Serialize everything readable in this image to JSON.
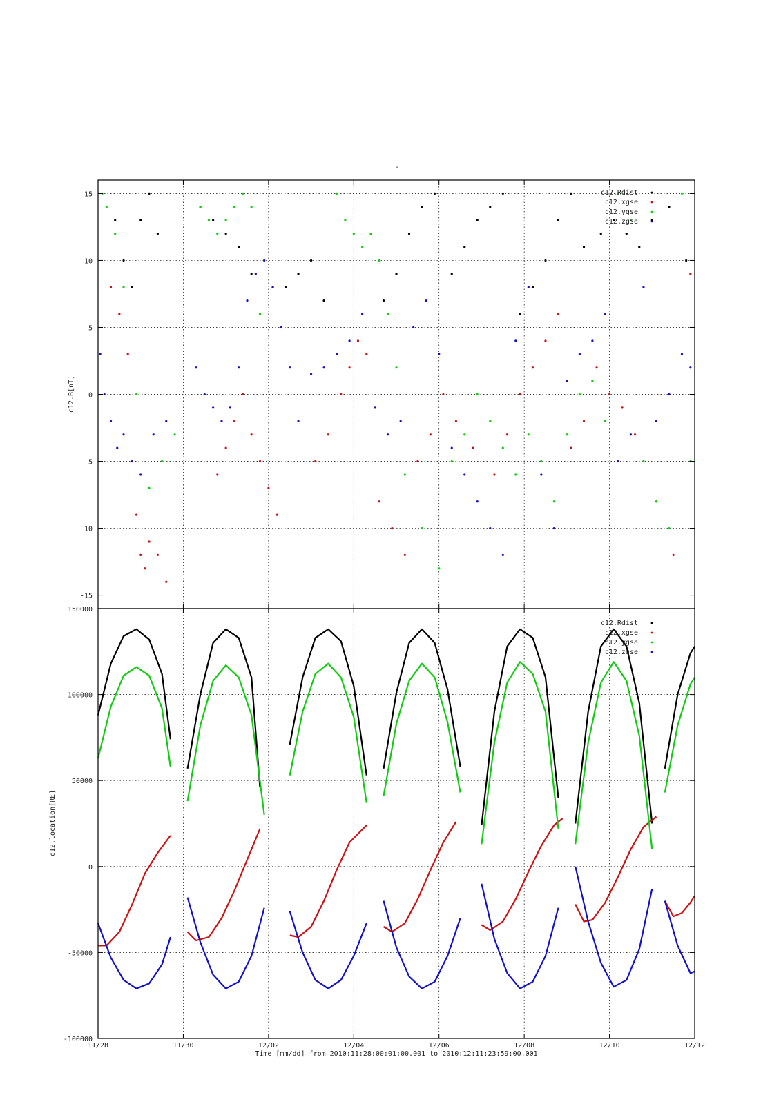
{
  "figure": {
    "top_title": "-",
    "xlabel": "Time [mm/dd]  from 2010:11:28:00:01:00.001  to  2010:12:11:23:59:00.001"
  },
  "colors": {
    "Rdist": "#000000",
    "xgse": "#cc1111",
    "ygse": "#11cc11",
    "zgse": "#1111cc"
  },
  "chart_data": [
    {
      "type": "scatter",
      "title": "",
      "ylabel": "c12.B[nT]",
      "x_unit": "days since 11/28",
      "xlim": [
        0,
        14
      ],
      "ylim": [
        -16,
        16
      ],
      "x_tick_labels": [
        "11/28",
        "11/30",
        "12/02",
        "12/04",
        "12/06",
        "12/08",
        "12/10",
        "12/12"
      ],
      "y_ticks": [
        -15,
        -10,
        -5,
        0,
        5,
        10,
        15
      ],
      "grid": true,
      "legend_position": "top-right",
      "series": [
        {
          "name": "c12.Rdist",
          "color": "#000000",
          "x": [
            0.4,
            0.6,
            0.8,
            1.0,
            1.2,
            1.4,
            2.4,
            2.7,
            3.0,
            3.3,
            3.6,
            4.1,
            4.4,
            4.7,
            5.0,
            5.3,
            6.7,
            7.0,
            7.3,
            7.6,
            7.9,
            8.3,
            8.6,
            8.9,
            9.2,
            9.5,
            9.9,
            10.2,
            10.5,
            10.8,
            11.1,
            11.4,
            11.8,
            12.1,
            12.4,
            12.7,
            13.0,
            13.4,
            13.8
          ],
          "y": [
            13,
            10,
            8,
            13,
            15,
            12,
            14,
            13,
            12,
            11,
            9,
            8,
            8,
            9,
            10,
            7,
            7,
            9,
            12,
            14,
            15,
            9,
            11,
            13,
            14,
            15,
            6,
            8,
            10,
            13,
            15,
            11,
            12,
            13,
            12,
            11,
            13,
            14,
            10
          ]
        },
        {
          "name": "c12.xgse",
          "color": "#cc1111",
          "x": [
            0.3,
            0.5,
            0.7,
            0.9,
            1.0,
            1.1,
            1.2,
            1.4,
            1.6,
            2.8,
            3.0,
            3.2,
            3.4,
            3.6,
            3.8,
            4.0,
            4.2,
            5.1,
            5.4,
            5.7,
            5.9,
            6.1,
            6.3,
            6.6,
            6.9,
            7.2,
            7.5,
            7.8,
            8.1,
            8.4,
            8.8,
            9.3,
            9.6,
            9.9,
            10.2,
            10.5,
            10.8,
            11.1,
            11.4,
            11.7,
            12.0,
            12.3,
            12.6,
            13.1,
            13.5,
            13.9
          ],
          "y": [
            8,
            6,
            3,
            -9,
            -12,
            -13,
            -11,
            -12,
            -14,
            -6,
            -4,
            -2,
            0,
            -3,
            -5,
            -7,
            -9,
            -5,
            -3,
            0,
            2,
            4,
            3,
            -8,
            -10,
            -12,
            -5,
            -3,
            0,
            -2,
            -4,
            -6,
            -3,
            0,
            2,
            4,
            6,
            -4,
            -2,
            2,
            0,
            -1,
            -3,
            -8,
            -12,
            9
          ]
        },
        {
          "name": "c12.ygse",
          "color": "#11cc11",
          "x": [
            0.1,
            0.2,
            0.4,
            0.6,
            0.9,
            1.2,
            1.5,
            1.8,
            2.4,
            2.6,
            2.8,
            3.0,
            3.2,
            3.4,
            3.6,
            3.8,
            5.6,
            5.8,
            6.0,
            6.2,
            6.4,
            6.6,
            6.8,
            7.0,
            7.2,
            7.6,
            8.0,
            8.3,
            8.6,
            8.9,
            9.2,
            9.5,
            9.8,
            10.1,
            10.4,
            10.7,
            11.0,
            11.3,
            11.6,
            11.9,
            12.2,
            12.5,
            12.8,
            13.1,
            13.4,
            13.7,
            13.9
          ],
          "y": [
            15,
            14,
            12,
            8,
            0,
            -7,
            -5,
            -3,
            14,
            13,
            12,
            13,
            14,
            15,
            14,
            6,
            15,
            13,
            12,
            11,
            12,
            10,
            6,
            2,
            -6,
            -10,
            -13,
            -5,
            -3,
            0,
            -2,
            -4,
            -6,
            -3,
            -5,
            -8,
            -3,
            0,
            1,
            -2,
            15,
            13,
            -5,
            -8,
            -10,
            15,
            -5
          ]
        },
        {
          "name": "c12.zgse",
          "color": "#1111cc",
          "x": [
            0.05,
            0.15,
            0.3,
            0.45,
            0.6,
            0.8,
            1.0,
            1.3,
            1.6,
            2.3,
            2.5,
            2.7,
            2.9,
            3.1,
            3.3,
            3.5,
            3.7,
            3.9,
            4.1,
            4.3,
            4.5,
            4.7,
            5.0,
            5.3,
            5.6,
            5.9,
            6.2,
            6.5,
            6.8,
            7.1,
            7.4,
            7.7,
            8.0,
            8.3,
            8.6,
            8.9,
            9.2,
            9.5,
            9.8,
            10.1,
            10.4,
            10.7,
            11.0,
            11.3,
            11.6,
            11.9,
            12.2,
            12.5,
            12.8,
            13.1,
            13.4,
            13.7,
            13.9
          ],
          "y": [
            3,
            0,
            -2,
            -4,
            -3,
            -5,
            -6,
            -3,
            -2,
            2,
            0,
            -1,
            -2,
            -1,
            2,
            7,
            9,
            10,
            8,
            5,
            2,
            -2,
            1.5,
            2,
            3,
            4,
            6,
            -1,
            -3,
            -2,
            5,
            7,
            3,
            -4,
            -6,
            -8,
            -10,
            -12,
            4,
            8,
            -6,
            -10,
            1,
            3,
            4,
            6,
            -5,
            -3,
            8,
            -2,
            0,
            3,
            2
          ]
        }
      ]
    },
    {
      "type": "line",
      "title": "",
      "ylabel": "c12.location[RE]",
      "x_unit": "days since 11/28",
      "xlim": [
        0,
        14
      ],
      "ylim": [
        -100000,
        150000
      ],
      "x_tick_labels": [
        "11/28",
        "11/30",
        "12/02",
        "12/04",
        "12/06",
        "12/08",
        "12/10",
        "12/12"
      ],
      "y_ticks": [
        -100000,
        -50000,
        0,
        50000,
        100000,
        150000
      ],
      "grid": true,
      "legend_position": "top-right",
      "series": [
        {
          "name": "c12.Rdist",
          "color": "#000000",
          "x": [
            0,
            0.3,
            0.6,
            0.9,
            1.2,
            1.5,
            1.7,
            null,
            2.1,
            2.4,
            2.7,
            3.0,
            3.3,
            3.6,
            3.8,
            null,
            4.5,
            4.8,
            5.1,
            5.4,
            5.7,
            6.0,
            6.3,
            null,
            6.7,
            7.0,
            7.3,
            7.6,
            7.9,
            8.2,
            8.5,
            null,
            9.0,
            9.3,
            9.6,
            9.9,
            10.2,
            10.5,
            10.8,
            null,
            11.2,
            11.5,
            11.8,
            12.1,
            12.4,
            12.7,
            13.0,
            null,
            13.3,
            13.6,
            13.9,
            14.0
          ],
          "y": [
            88000,
            118000,
            134000,
            138000,
            132000,
            112000,
            74000,
            null,
            57000,
            100000,
            130000,
            138000,
            133000,
            110000,
            46000,
            null,
            71000,
            110000,
            133000,
            138000,
            131000,
            105000,
            53000,
            null,
            57000,
            101000,
            130000,
            138000,
            130000,
            103000,
            58000,
            null,
            24000,
            90000,
            128000,
            138000,
            133000,
            110000,
            40000,
            null,
            25000,
            90000,
            128000,
            138000,
            128000,
            95000,
            25000,
            null,
            57000,
            100000,
            124000,
            128000
          ]
        },
        {
          "name": "c12.xgse",
          "color": "#cc1111",
          "x": [
            0,
            0.2,
            0.5,
            0.8,
            1.1,
            1.4,
            1.7,
            null,
            2.1,
            2.3,
            2.6,
            2.9,
            3.2,
            3.5,
            3.8,
            null,
            4.5,
            4.7,
            5.0,
            5.3,
            5.6,
            5.9,
            6.3,
            null,
            6.7,
            6.9,
            7.2,
            7.5,
            7.8,
            8.1,
            8.4,
            null,
            9.0,
            9.2,
            9.5,
            9.8,
            10.1,
            10.4,
            10.7,
            10.9,
            null,
            11.2,
            11.4,
            11.6,
            11.9,
            12.2,
            12.5,
            12.8,
            13.1,
            null,
            13.3,
            13.5,
            13.7,
            13.9,
            14.0
          ],
          "y": [
            -46000,
            -46000,
            -38000,
            -22000,
            -4000,
            8000,
            18000,
            null,
            -38000,
            -43000,
            -41000,
            -30000,
            -14000,
            4000,
            22000,
            null,
            -40000,
            -41000,
            -35000,
            -20000,
            -2000,
            14000,
            24000,
            null,
            -35000,
            -38000,
            -33000,
            -19000,
            -2000,
            14000,
            26000,
            null,
            -34000,
            -37000,
            -32000,
            -19000,
            -3000,
            12000,
            24000,
            28000,
            null,
            -22000,
            -32000,
            -31000,
            -21000,
            -6000,
            10000,
            23000,
            29000,
            null,
            -20000,
            -29000,
            -27000,
            -21000,
            -17000
          ]
        },
        {
          "name": "c12.ygse",
          "color": "#11cc11",
          "x": [
            0,
            0.3,
            0.6,
            0.9,
            1.2,
            1.5,
            1.7,
            null,
            2.1,
            2.4,
            2.7,
            3.0,
            3.3,
            3.6,
            3.9,
            null,
            4.5,
            4.8,
            5.1,
            5.4,
            5.7,
            6.0,
            6.3,
            null,
            6.7,
            7.0,
            7.3,
            7.6,
            7.9,
            8.2,
            8.5,
            null,
            9.0,
            9.3,
            9.6,
            9.9,
            10.2,
            10.5,
            10.8,
            null,
            11.2,
            11.5,
            11.8,
            12.1,
            12.4,
            12.7,
            13.0,
            null,
            13.3,
            13.6,
            13.9,
            14.0
          ],
          "y": [
            63000,
            93000,
            111000,
            116000,
            111000,
            92000,
            58000,
            null,
            38000,
            82000,
            108000,
            117000,
            110000,
            88000,
            30000,
            null,
            53000,
            90000,
            112000,
            118000,
            110000,
            87000,
            37000,
            null,
            41000,
            83000,
            108000,
            118000,
            110000,
            84000,
            43000,
            null,
            13000,
            72000,
            107000,
            119000,
            112000,
            90000,
            22000,
            null,
            13000,
            72000,
            107000,
            119000,
            108000,
            76000,
            10000,
            null,
            43000,
            82000,
            106000,
            110000
          ]
        },
        {
          "name": "c12.zgse",
          "color": "#1111cc",
          "x": [
            0,
            0.3,
            0.6,
            0.9,
            1.2,
            1.5,
            1.7,
            null,
            2.1,
            2.4,
            2.7,
            3.0,
            3.3,
            3.6,
            3.9,
            null,
            4.5,
            4.8,
            5.1,
            5.4,
            5.7,
            6.0,
            6.3,
            null,
            6.7,
            7.0,
            7.3,
            7.6,
            7.9,
            8.2,
            8.5,
            null,
            9.0,
            9.3,
            9.6,
            9.9,
            10.2,
            10.5,
            10.8,
            null,
            11.2,
            11.5,
            11.8,
            12.1,
            12.4,
            12.7,
            13.0,
            null,
            13.3,
            13.6,
            13.9,
            14.0
          ],
          "y": [
            -33000,
            -53000,
            -66000,
            -71000,
            -68000,
            -57000,
            -41000,
            null,
            -18000,
            -44000,
            -63000,
            -71000,
            -67000,
            -52000,
            -24000,
            null,
            -26000,
            -50000,
            -66000,
            -71000,
            -66000,
            -52000,
            -33000,
            null,
            -20000,
            -47000,
            -64000,
            -71000,
            -67000,
            -52000,
            -30000,
            null,
            -10000,
            -42000,
            -62000,
            -71000,
            -67000,
            -52000,
            -24000,
            null,
            0,
            -32000,
            -56000,
            -70000,
            -66000,
            -48000,
            -13000,
            null,
            -20000,
            -46000,
            -62000,
            -61000
          ]
        }
      ]
    }
  ]
}
